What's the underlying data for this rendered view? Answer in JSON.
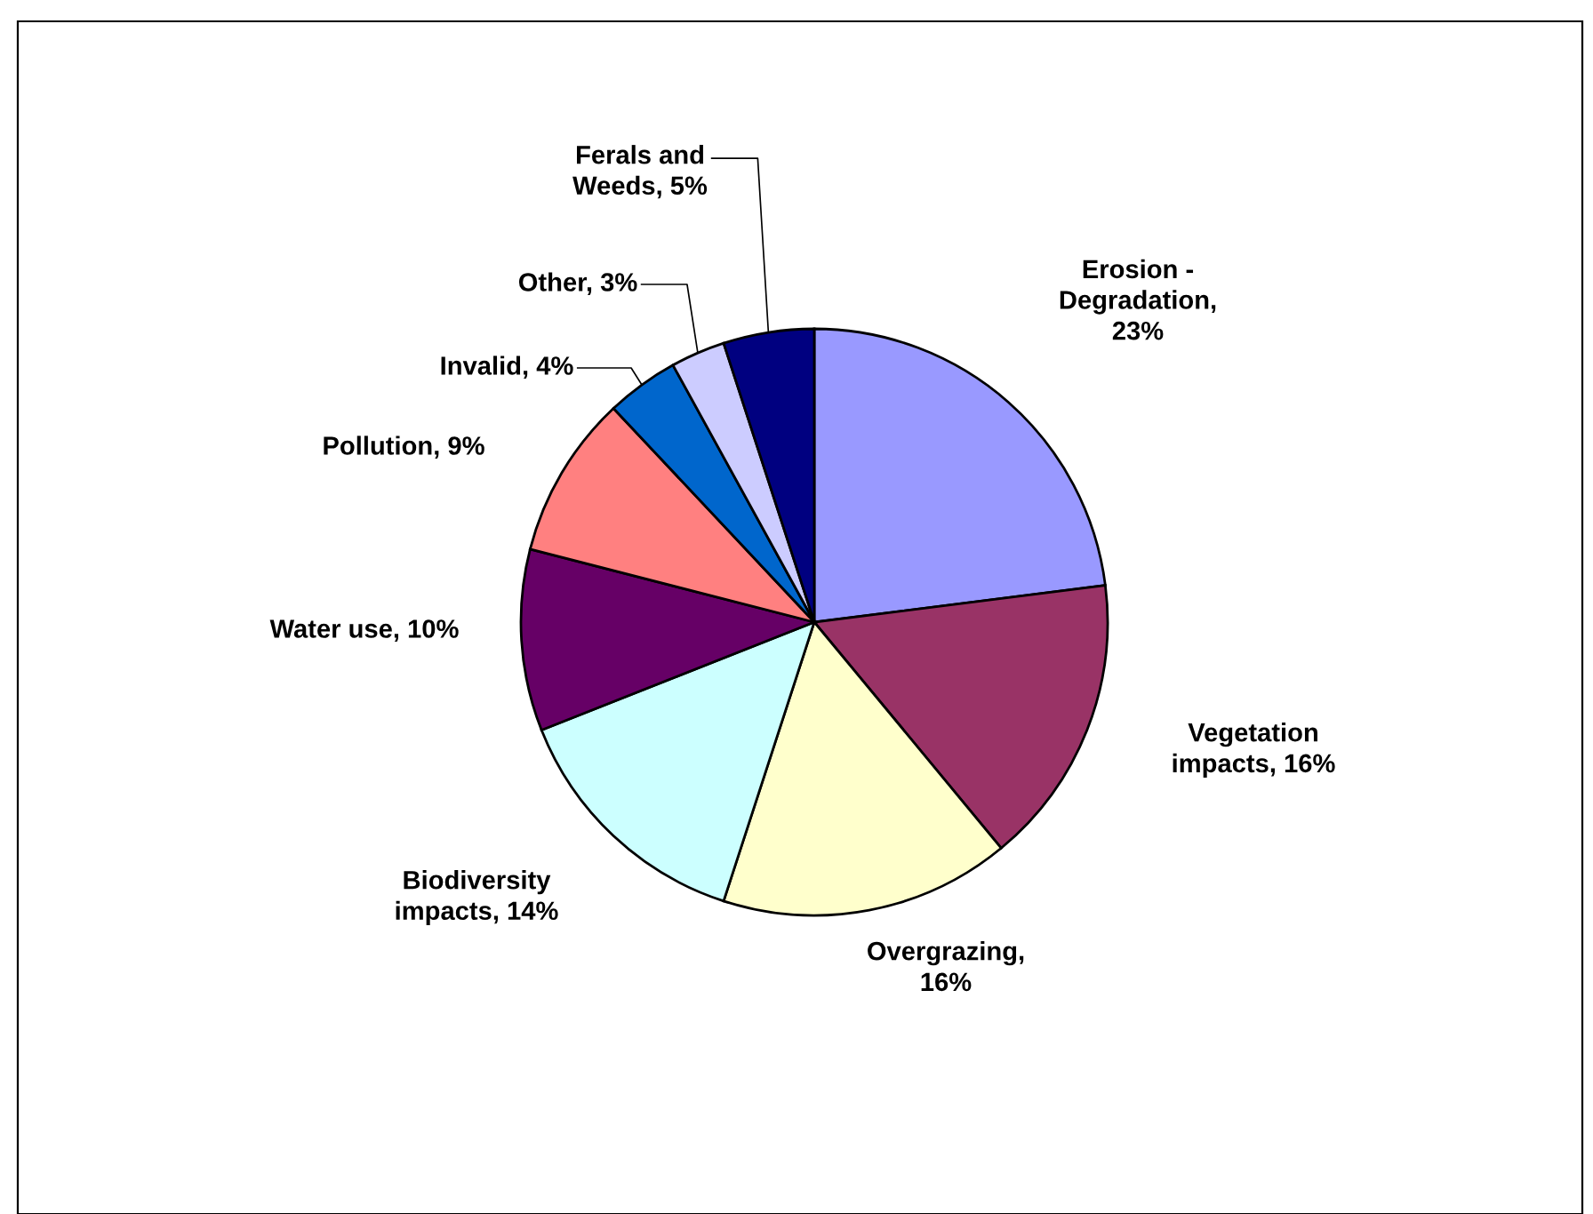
{
  "chart_data": {
    "type": "pie",
    "categories": [
      "Erosion -\nDegradation,\n23%",
      "Vegetation\nimpacts, 16%",
      "Overgrazing,\n16%",
      "Biodiversity\nimpacts, 14%",
      "Water use, 10%",
      "Pollution, 9%",
      "Invalid, 4%",
      "Other, 3%",
      "Ferals and\nWeeds, 5%"
    ],
    "values": [
      23,
      16,
      16,
      14,
      10,
      9,
      4,
      3,
      5
    ],
    "colors": [
      "#9999ff",
      "#993366",
      "#ffffcc",
      "#ccffff",
      "#660066",
      "#ff8080",
      "#0066cc",
      "#ccccff",
      "#000080"
    ],
    "legend": false
  }
}
